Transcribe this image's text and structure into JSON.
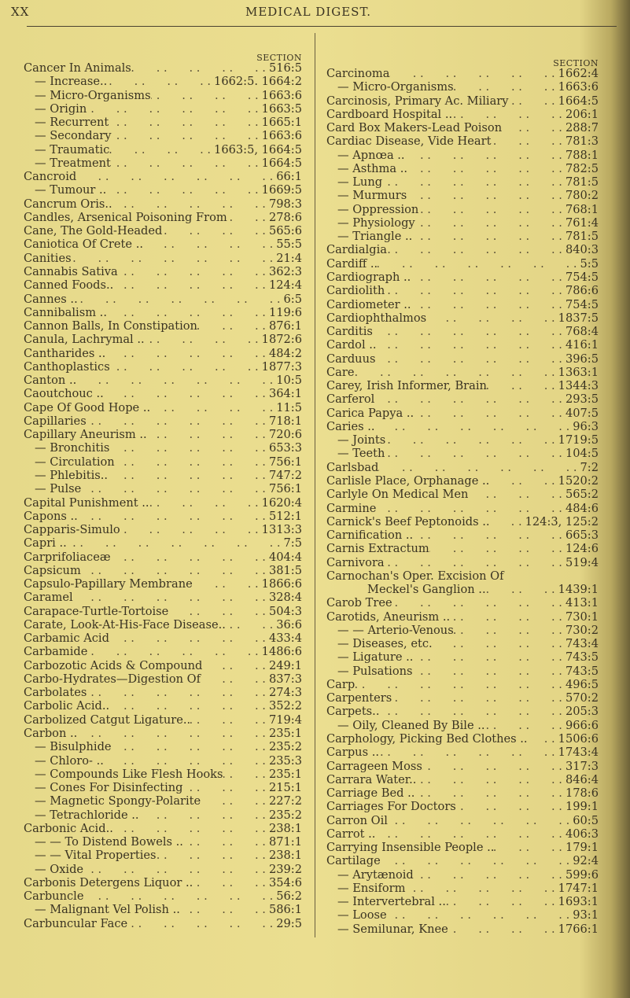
{
  "running_head": {
    "folio": "XX",
    "title": "MEDICAL DIGEST."
  },
  "section_label": "SECTION",
  "left_column": [
    {
      "term": "Cancer In Animals",
      "ref": "516:5",
      "level": 0
    },
    {
      "term": "— Increase..",
      "ref": "1662:5. 1664:2",
      "level": 1
    },
    {
      "term": "— Micro-Organisms",
      "ref": "1663:6",
      "level": 1
    },
    {
      "term": "— Origin",
      "ref": "1663:5",
      "level": 1
    },
    {
      "term": "— Recurrent",
      "ref": "1665:1",
      "level": 1
    },
    {
      "term": "— Secondary",
      "ref": "1663:6",
      "level": 1
    },
    {
      "term": "— Traumatic",
      "ref": "1663:5, 1664:5",
      "level": 1
    },
    {
      "term": "— Treatment",
      "ref": "1664:5",
      "level": 1
    },
    {
      "term": "Cancroid",
      "ref": "66:1",
      "level": 0
    },
    {
      "term": "— Tumour ..",
      "ref": "1669:5",
      "level": 1
    },
    {
      "term": "Cancrum Oris..",
      "ref": "798:3",
      "level": 0
    },
    {
      "term": "Candles, Arsenical Poisoning From",
      "ref": "278:6",
      "level": 0
    },
    {
      "term": "Cane, The Gold-Headed",
      "ref": "565:6",
      "level": 0
    },
    {
      "term": "Caniotica Of Crete ..",
      "ref": "55:5",
      "level": 0
    },
    {
      "term": "Canities",
      "ref": "21:4",
      "level": 0
    },
    {
      "term": "Cannabis Sativa",
      "ref": "362:3",
      "level": 0
    },
    {
      "term": "Canned Foods..",
      "ref": "124:4",
      "level": 0
    },
    {
      "term": "Cannes ..",
      "ref": "6:5",
      "level": 0
    },
    {
      "term": "Cannibalism ..",
      "ref": "119:6",
      "level": 0
    },
    {
      "term": "Cannon Balls, In Constipation",
      "ref": "876:1",
      "level": 0
    },
    {
      "term": "Canula, Lachrymal ..",
      "ref": "1872:6",
      "level": 0
    },
    {
      "term": "Cantharides ..",
      "ref": "484:2",
      "level": 0
    },
    {
      "term": "Canthoplastics",
      "ref": "1877:3",
      "level": 0
    },
    {
      "term": "Canton ..",
      "ref": "10:5",
      "level": 0
    },
    {
      "term": "Caoutchouc ..",
      "ref": "364:1",
      "level": 0
    },
    {
      "term": "Cape Of Good Hope ..",
      "ref": "11:5",
      "level": 0
    },
    {
      "term": "Capillaries",
      "ref": "718:1",
      "level": 0
    },
    {
      "term": "Capillary Aneurism ..",
      "ref": "720:6",
      "level": 0
    },
    {
      "term": "— Bronchitis",
      "ref": "653:3",
      "level": 1
    },
    {
      "term": "— Circulation",
      "ref": "756:1",
      "level": 1
    },
    {
      "term": "— Phlebitis..",
      "ref": "747:2",
      "level": 1
    },
    {
      "term": "— Pulse",
      "ref": "756:1",
      "level": 1
    },
    {
      "term": "Capital Punishment ..",
      "ref": "1620:4",
      "level": 0
    },
    {
      "term": "Capons ..",
      "ref": "512:1",
      "level": 0
    },
    {
      "term": "Capparis-Simulo",
      "ref": "1313:3",
      "level": 0
    },
    {
      "term": "Capri ..",
      "ref": "7:5",
      "level": 0
    },
    {
      "term": "Carprifoliaceæ",
      "ref": "404:4",
      "level": 0
    },
    {
      "term": "Capsicum",
      "ref": "381:5",
      "level": 0
    },
    {
      "term": "Capsulo-Papillary Membrane",
      "ref": "1866:6",
      "level": 0
    },
    {
      "term": "Caramel",
      "ref": "328:4",
      "level": 0
    },
    {
      "term": "Carapace-Turtle-Tortoise",
      "ref": "504:3",
      "level": 0
    },
    {
      "term": "Carate, Look-At-His-Face Disease..",
      "ref": "36:6",
      "level": 0
    },
    {
      "term": "Carbamic Acid",
      "ref": "433:4",
      "level": 0
    },
    {
      "term": "Carbamide",
      "ref": "1486:6",
      "level": 0
    },
    {
      "term": "Carbozotic Acids & Compound",
      "ref": "249:1",
      "level": 0
    },
    {
      "term": "Carbo-Hydrates—Digestion Of",
      "ref": "837:3",
      "level": 0
    },
    {
      "term": "Carbolates",
      "ref": "274:3",
      "level": 0
    },
    {
      "term": "Carbolic Acid..",
      "ref": "352:2",
      "level": 0
    },
    {
      "term": "Carbolized Catgut Ligature..",
      "ref": "719:4",
      "level": 0
    },
    {
      "term": "Carbon ..",
      "ref": "235:1",
      "level": 0
    },
    {
      "term": "— Bisulphide",
      "ref": "235:2",
      "level": 1
    },
    {
      "term": "— Chloro- ..",
      "ref": "235:3",
      "level": 1
    },
    {
      "term": "— Compounds Like Flesh Hooks",
      "ref": "235:1",
      "level": 1
    },
    {
      "term": "— Cones For Disinfecting",
      "ref": "215:1",
      "level": 1
    },
    {
      "term": "— Magnetic Spongy-Polarite",
      "ref": "227:2",
      "level": 1
    },
    {
      "term": "— Tetrachloride ..",
      "ref": "235:2",
      "level": 1
    },
    {
      "term": "Carbonic Acid..",
      "ref": "238:1",
      "level": 0
    },
    {
      "term": "— — To Distend Bowels ..",
      "ref": "871:1",
      "level": 2
    },
    {
      "term": "— — Vital Properties",
      "ref": "238:1",
      "level": 2
    },
    {
      "term": "— Oxide",
      "ref": "239:2",
      "level": 1
    },
    {
      "term": "Carbonis Detergens Liquor ..",
      "ref": "354:6",
      "level": 0
    },
    {
      "term": "Carbuncle",
      "ref": "56:2",
      "level": 0
    },
    {
      "term": "— Malignant Vel Polish ..",
      "ref": "586:1",
      "level": 1
    },
    {
      "term": "Carbuncular Face",
      "ref": "29:5",
      "level": 0
    }
  ],
  "right_column": [
    {
      "term": "Carcinoma",
      "ref": "1662:4",
      "level": 0
    },
    {
      "term": "— Micro-Organisms",
      "ref": "1663:6",
      "level": 1
    },
    {
      "term": "Carcinosis, Primary Ac. Miliary",
      "ref": "1664:5",
      "level": 0
    },
    {
      "term": "Cardboard Hospital ..",
      "ref": "206:1",
      "level": 0
    },
    {
      "term": "Card Box Makers-Lead Poison",
      "ref": "288:7",
      "level": 0
    },
    {
      "term": "Cardiac Disease, Vide Heart",
      "ref": "781:3",
      "level": 0
    },
    {
      "term": "— Apnœa ..",
      "ref": "788:1",
      "level": 1
    },
    {
      "term": "— Asthma ..",
      "ref": "782:5",
      "level": 1
    },
    {
      "term": "— Lung",
      "ref": "781:5",
      "level": 1
    },
    {
      "term": "— Murmurs",
      "ref": "780:2",
      "level": 1
    },
    {
      "term": "— Oppression",
      "ref": "768:1",
      "level": 1
    },
    {
      "term": "— Physiology",
      "ref": "761:4",
      "level": 1
    },
    {
      "term": "— Triangle ..",
      "ref": "781:5",
      "level": 1
    },
    {
      "term": "Cardialgia",
      "ref": "840:3",
      "level": 0
    },
    {
      "term": "Cardiff ..",
      "ref": "5:5",
      "level": 0
    },
    {
      "term": "Cardiograph ..",
      "ref": "754:5",
      "level": 0
    },
    {
      "term": "Cardiolith",
      "ref": "786:6",
      "level": 0
    },
    {
      "term": "Cardiometer ..",
      "ref": "754:5",
      "level": 0
    },
    {
      "term": "Cardiophthalmos",
      "ref": "1837:5",
      "level": 0
    },
    {
      "term": "Carditis",
      "ref": "768:4",
      "level": 0
    },
    {
      "term": "Cardol ..",
      "ref": "416:1",
      "level": 0
    },
    {
      "term": "Carduus",
      "ref": "396:5",
      "level": 0
    },
    {
      "term": "Care",
      "ref": "1363:1",
      "level": 0
    },
    {
      "term": "Carey, Irish Informer, Brain",
      "ref": "1344:3",
      "level": 0
    },
    {
      "term": "Carferol",
      "ref": "293:5",
      "level": 0
    },
    {
      "term": "Carica Papya ..",
      "ref": "407:5",
      "level": 0
    },
    {
      "term": "Caries ..",
      "ref": "96:3",
      "level": 0
    },
    {
      "term": "— Joints",
      "ref": "1719:5",
      "level": 1
    },
    {
      "term": "— Teeth",
      "ref": "104:5",
      "level": 1
    },
    {
      "term": "Carlsbad",
      "ref": "7:2",
      "level": 0
    },
    {
      "term": "Carlisle Place, Orphanage ..",
      "ref": "1520:2",
      "level": 0
    },
    {
      "term": "Carlyle On Medical Men",
      "ref": "565:2",
      "level": 0
    },
    {
      "term": "Carmine",
      "ref": "484:6",
      "level": 0
    },
    {
      "term": "Carnick's Beef Peptonoids ..",
      "ref": "124:3, 125:2",
      "level": 0
    },
    {
      "term": "Carnification ..",
      "ref": "665:3",
      "level": 0
    },
    {
      "term": "Carnis Extractum",
      "ref": "124:6",
      "level": 0
    },
    {
      "term": "Carnivora",
      "ref": "519:4",
      "level": 0
    },
    {
      "term": "Carnochan's  Oper.  Excision  Of",
      "ref": "",
      "level": 0
    },
    {
      "term": "Meckel's Ganglion ..",
      "ref": "1439:1",
      "level": 3
    },
    {
      "term": "Carob Tree",
      "ref": "413:1",
      "level": 0
    },
    {
      "term": "Carotids, Aneurism ..",
      "ref": "730:1",
      "level": 0
    },
    {
      "term": "— — Arterio-Venous",
      "ref": "730:2",
      "level": 2
    },
    {
      "term": "— Diseases, etc.",
      "ref": "743:4",
      "level": 1
    },
    {
      "term": "— Ligature ..",
      "ref": "743:5",
      "level": 1
    },
    {
      "term": "— Pulsations",
      "ref": "743:5",
      "level": 1
    },
    {
      "term": "Carp",
      "ref": "496:5",
      "level": 0
    },
    {
      "term": "Carpenters",
      "ref": "570:2",
      "level": 0
    },
    {
      "term": "Carpets..",
      "ref": "205:3",
      "level": 0
    },
    {
      "term": "— Oily, Cleaned By Bile ..",
      "ref": "966:6",
      "level": 1
    },
    {
      "term": "Carphology, Picking Bed Clothes ..",
      "ref": "1506:6",
      "level": 0
    },
    {
      "term": "Carpus ..",
      "ref": "1743:4",
      "level": 0
    },
    {
      "term": "Carrageen Moss",
      "ref": "317:3",
      "level": 0
    },
    {
      "term": "Carrara Water..",
      "ref": "846:4",
      "level": 0
    },
    {
      "term": "Carriage Bed ..",
      "ref": "178:6",
      "level": 0
    },
    {
      "term": "Carriages For Doctors",
      "ref": "199:1",
      "level": 0
    },
    {
      "term": "Carron Oil",
      "ref": "60:5",
      "level": 0
    },
    {
      "term": "Carrot ..",
      "ref": "406:3",
      "level": 0
    },
    {
      "term": "Carrying Insensible People ..",
      "ref": "179:1",
      "level": 0
    },
    {
      "term": "Cartilage",
      "ref": "92:4",
      "level": 0
    },
    {
      "term": "— Arytænoid",
      "ref": "599:6",
      "level": 1
    },
    {
      "term": "— Ensiform",
      "ref": "1747:1",
      "level": 1
    },
    {
      "term": "— Intervertebral ..",
      "ref": "1693:1",
      "level": 1
    },
    {
      "term": "— Loose",
      "ref": "93:1",
      "level": 1
    },
    {
      "term": "— Semilunar, Knee",
      "ref": "1766:1",
      "level": 1
    }
  ]
}
